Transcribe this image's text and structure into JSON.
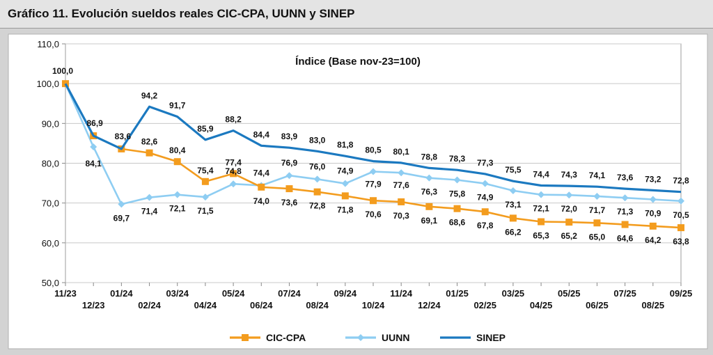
{
  "page_title": "Gráfico 11. Evolución sueldos reales CIC-CPA, UUNN y SINEP",
  "chart_data": {
    "type": "line",
    "title": "Índice (Base nov-23=100)",
    "xlabel": "",
    "ylabel": "",
    "ylim": [
      50,
      110
    ],
    "yticks": [
      "50,0",
      "60,0",
      "70,0",
      "80,0",
      "90,0",
      "100,0",
      "110,0"
    ],
    "categories": [
      "11/23",
      "12/23",
      "01/24",
      "02/24",
      "03/24",
      "04/24",
      "05/24",
      "06/24",
      "07/24",
      "08/24",
      "09/24",
      "10/24",
      "11/24",
      "12/24",
      "01/25",
      "02/25",
      "03/25",
      "04/25",
      "05/25",
      "06/25",
      "07/25",
      "08/25",
      "09/25"
    ],
    "grid": true,
    "legend": "bottom",
    "series": [
      {
        "name": "CIC-CPA",
        "color": "#f39c1e",
        "marker": "square",
        "values": [
          100.0,
          86.9,
          83.6,
          82.6,
          80.4,
          75.4,
          77.4,
          74.0,
          73.6,
          72.8,
          71.8,
          70.6,
          70.3,
          69.1,
          68.6,
          67.8,
          66.2,
          65.3,
          65.2,
          65.0,
          64.6,
          64.2,
          63.8
        ],
        "labels": [
          "100,0",
          "",
          "",
          "82,6",
          "80,4",
          "75,4",
          "77,4",
          "74,0",
          "73,6",
          "72,8",
          "71,8",
          "70,6",
          "70,3",
          "69,1",
          "68,6",
          "67,8",
          "66,2",
          "65,3",
          "65,2",
          "65,0",
          "64,6",
          "64,2",
          "63,8"
        ]
      },
      {
        "name": "UUNN",
        "color": "#8ecdf2",
        "marker": "diamond",
        "values": [
          100.0,
          84.1,
          69.7,
          71.4,
          72.1,
          71.5,
          74.8,
          74.4,
          76.9,
          76.0,
          74.9,
          77.9,
          77.6,
          76.3,
          75.8,
          74.9,
          73.1,
          72.1,
          72.0,
          71.7,
          71.3,
          70.9,
          70.5
        ],
        "labels": [
          "",
          "84,1",
          "69,7",
          "71,4",
          "72,1",
          "71,5",
          "74,8",
          "74,4",
          "76,9",
          "76,0",
          "74,9",
          "77,9",
          "77,6",
          "76,3",
          "75,8",
          "74,9",
          "73,1",
          "72,1",
          "72,0",
          "71,7",
          "71,3",
          "70,9",
          "70,5"
        ]
      },
      {
        "name": "SINEP",
        "color": "#1b79c0",
        "marker": "none",
        "values": [
          100.0,
          86.9,
          83.6,
          94.2,
          91.7,
          85.9,
          88.2,
          84.4,
          83.9,
          83.0,
          81.8,
          80.5,
          80.1,
          78.8,
          78.3,
          77.3,
          75.5,
          74.4,
          74.3,
          74.1,
          73.6,
          73.2,
          72.8
        ],
        "labels": [
          "",
          "86,9",
          "83,6",
          "94,2",
          "91,7",
          "85,9",
          "88,2",
          "84,4",
          "83,9",
          "83,0",
          "81,8",
          "80,5",
          "80,1",
          "78,8",
          "78,3",
          "77,3",
          "75,5",
          "74,4",
          "74,3",
          "74,1",
          "73,6",
          "73,2",
          "72,8"
        ]
      }
    ]
  }
}
